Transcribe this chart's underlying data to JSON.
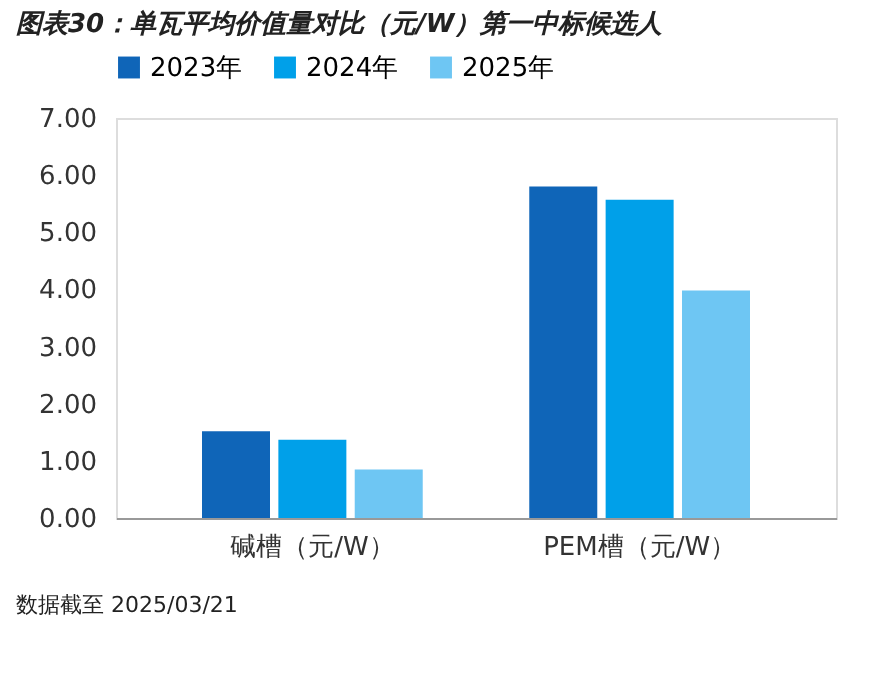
{
  "chart_data": {
    "type": "bar",
    "title": "图表30：单瓦平均价值量对比（元/W）第一中标候选人",
    "categories": [
      "碱槽（元/W）",
      "PEM槽（元/W）"
    ],
    "series": [
      {
        "name": "2023年",
        "color": "#0f65b8",
        "values": [
          1.52,
          5.8
        ]
      },
      {
        "name": "2024年",
        "color": "#00a0e9",
        "values": [
          1.37,
          5.57
        ]
      },
      {
        "name": "2025年",
        "color": "#6ec6f3",
        "values": [
          0.85,
          3.98
        ]
      }
    ],
    "ylim": [
      0,
      7
    ],
    "yticks": [
      {
        "value": 0,
        "label": "0.00"
      },
      {
        "value": 1,
        "label": "1.00"
      },
      {
        "value": 2,
        "label": "2.00"
      },
      {
        "value": 3,
        "label": "3.00"
      },
      {
        "value": 4,
        "label": "4.00"
      },
      {
        "value": 5,
        "label": "5.00"
      },
      {
        "value": 6,
        "label": "6.00"
      },
      {
        "value": 7,
        "label": "7.00"
      }
    ],
    "legend": "top",
    "grid": false,
    "annotations": [
      "数据截至 2025/03/21"
    ]
  }
}
